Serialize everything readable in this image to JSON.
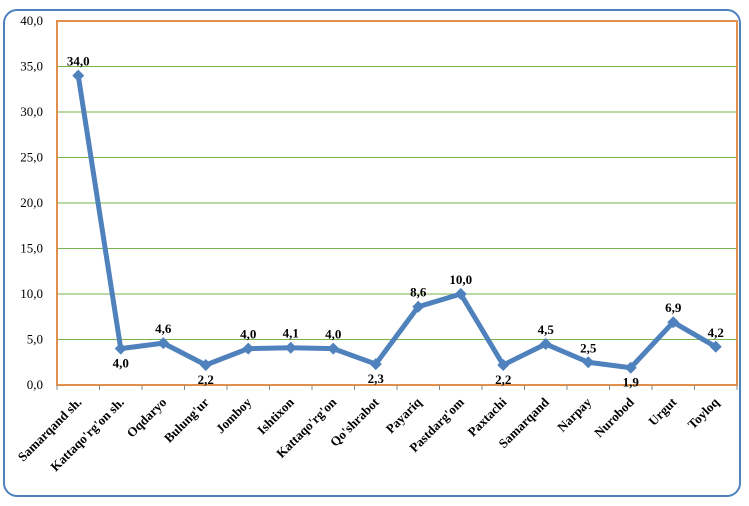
{
  "chart_data": {
    "type": "line",
    "title": "",
    "xlabel": "",
    "ylabel": "",
    "ylim": [
      0,
      40
    ],
    "yticks": [
      "0,0",
      "5,0",
      "10,0",
      "15,0",
      "20,0",
      "25,0",
      "30,0",
      "35,0",
      "40,0"
    ],
    "grid": true,
    "categories": [
      "Samarqand sh.",
      "Kattaqo'rg'on sh.",
      "Oqdaryo",
      "Bulung'ur",
      "Jomboy",
      "Ishtixon",
      "Kattaqo'rg'on",
      "Qo'shrabot",
      "Payariq",
      "Pastdarg'om",
      "Paxtachi",
      "Samarqand",
      "Narpay",
      "Nurobod",
      "Urgut",
      "Toyloq"
    ],
    "series": [
      {
        "values": [
          34.0,
          4.0,
          4.6,
          2.2,
          4.0,
          4.1,
          4.0,
          2.3,
          8.6,
          10.0,
          2.2,
          4.5,
          2.5,
          1.9,
          6.9,
          4.2
        ],
        "labels": [
          "34,0",
          "4,0",
          "4,6",
          "2,2",
          "4,0",
          "4,1",
          "4,0",
          "2,3",
          "8,6",
          "10,0",
          "2,2",
          "4,5",
          "2,5",
          "1,9",
          "6,9",
          "4,2"
        ]
      }
    ],
    "colors": {
      "line": "#4f81bd",
      "grid": "#77b34a",
      "plot_border": "#e0904a",
      "frame": "#4f81bd"
    }
  }
}
